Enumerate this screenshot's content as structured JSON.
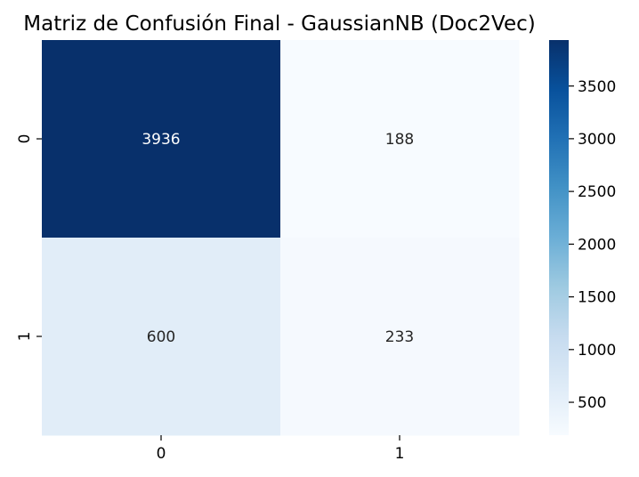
{
  "chart_data": {
    "type": "heatmap",
    "title": "Matriz de Confusión Final - GaussianNB (Doc2Vec)",
    "xlabel": "",
    "ylabel": "",
    "x_categories": [
      "0",
      "1"
    ],
    "y_categories": [
      "0",
      "1"
    ],
    "values": [
      [
        3936,
        188
      ],
      [
        600,
        233
      ]
    ],
    "colormap": "Blues",
    "value_range": [
      188,
      3936
    ],
    "colorbar_ticks": [
      500,
      1000,
      1500,
      2000,
      2500,
      3000,
      3500
    ],
    "annotations": true,
    "annotation_colors": {
      "dark_cell": "#ffffff",
      "light_cell": "#262626"
    },
    "grid": false,
    "legend": "colorbar-right"
  }
}
